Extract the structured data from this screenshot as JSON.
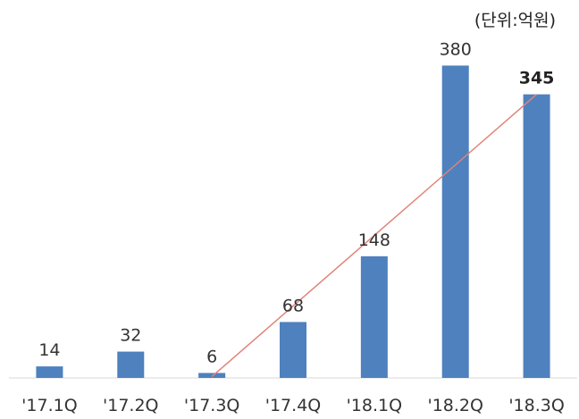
{
  "chart_data": {
    "type": "bar",
    "unit_label": "(단위:억원)",
    "categories": [
      "'17.1Q",
      "'17.2Q",
      "'17.3Q",
      "'17.4Q",
      "'18.1Q",
      "'18.2Q",
      "'18.3Q"
    ],
    "values": [
      14,
      32,
      6,
      68,
      148,
      380,
      345
    ],
    "value_labels": [
      "14",
      "32",
      "6",
      "68",
      "148",
      "380",
      "345"
    ],
    "bold_label_index": 6,
    "ylim": [
      0,
      400
    ],
    "grid": false,
    "legend": "none",
    "trendline": {
      "from_index": 2,
      "to_index": 6,
      "color": "#e0847a"
    },
    "colors": {
      "bar": "#4e81bd",
      "axis": "#d9d9d9"
    }
  }
}
